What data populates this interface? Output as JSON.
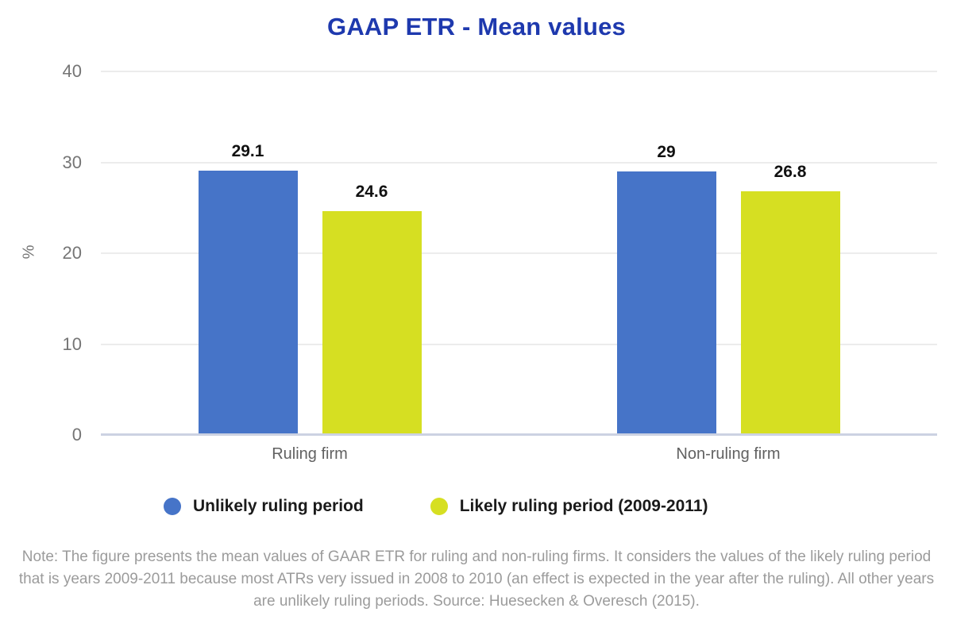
{
  "title": "GAAP ETR - Mean values",
  "chart_data": {
    "type": "bar",
    "title": "GAAP ETR - Mean values",
    "categories": [
      "Ruling firm",
      "Non-ruling firm"
    ],
    "series": [
      {
        "name": "Unlikely ruling period",
        "color": "#4674c8",
        "values": [
          29.1,
          29
        ],
        "labels": [
          "29.1",
          "29"
        ]
      },
      {
        "name": "Likely ruling period (2009-2011)",
        "color": "#d6df22",
        "values": [
          24.6,
          26.8
        ],
        "labels": [
          "24.6",
          "26.8"
        ]
      }
    ],
    "xlabel": "",
    "ylabel": "%",
    "ylim": [
      0,
      40
    ],
    "yticks": [
      0,
      10,
      20,
      30,
      40
    ],
    "grid": true,
    "legend_position": "bottom",
    "title_color": "#1e39ae"
  },
  "note": "Note: The figure presents the mean values of GAAR ETR for ruling and non-ruling firms. It considers the values of the likely ruling period that is years 2009-2011 because most ATRs very issued in 2008 to 2010 (an effect is expected in the year after the ruling). All other years are unlikely ruling periods. Source: Huesecken & Overesch (2015)."
}
